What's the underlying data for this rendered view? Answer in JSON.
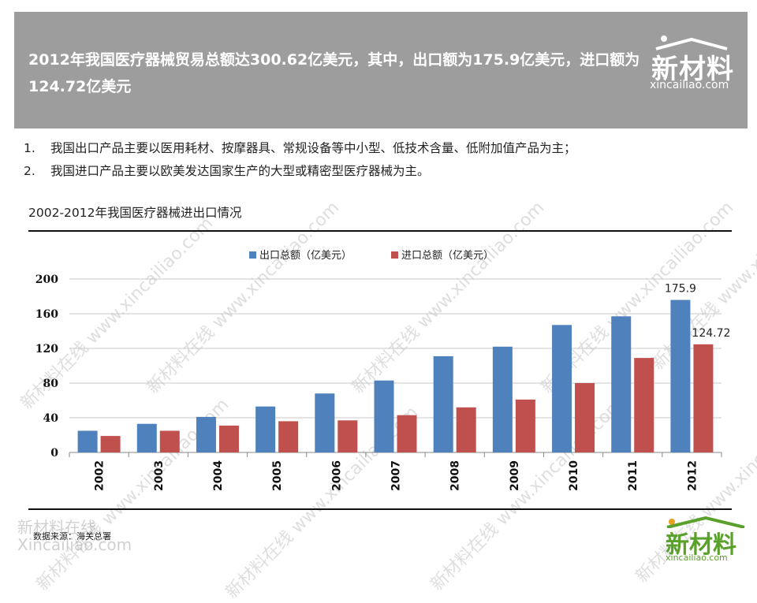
{
  "header": {
    "title": "2012年我国医疗器械贸易总额达300.62亿美元，其中，出口额为175.9亿美元，进口额为124.72亿美元"
  },
  "logo": {
    "brand": "新材料",
    "domain": "xincailiao.com"
  },
  "bullets": [
    {
      "num": "1.",
      "text": "我国出口产品主要以医用耗材、按摩器具、常规设备等中小型、低技术含量、低附加值产品为主；"
    },
    {
      "num": "2.",
      "text": "我国进口产品主要以欧美发达国家生产的大型或精密型医疗器械为主。"
    }
  ],
  "source": "数据来源：海关总署",
  "watermark": {
    "line1": "新材料在线",
    "line2": "Xincailiao.com",
    "diag": "新材料在线 www.xincailiao.com"
  },
  "colors": {
    "export": "#4f81bd",
    "import": "#c0504d",
    "header_bg": "#9d9d9d",
    "logo_green": "#5aa12b"
  },
  "chart_data": {
    "type": "bar",
    "title": "2002-2012年我国医疗器械进出口情况",
    "categories": [
      "2002",
      "2003",
      "2004",
      "2005",
      "2006",
      "2007",
      "2008",
      "2009",
      "2010",
      "2011",
      "2012"
    ],
    "series": [
      {
        "name": "出口总额（亿美元）",
        "values": [
          25,
          33,
          41,
          53,
          68,
          83,
          111,
          122,
          147,
          157,
          175.9
        ]
      },
      {
        "name": "进口总额（亿美元）",
        "values": [
          19,
          25,
          31,
          36,
          37,
          43,
          52,
          61,
          80,
          109,
          124.72
        ]
      }
    ],
    "ylim": [
      0,
      200
    ],
    "yticks": [
      0,
      40,
      80,
      120,
      160,
      200
    ],
    "data_labels": [
      {
        "series": 0,
        "index": 10,
        "text": "175.9"
      },
      {
        "series": 1,
        "index": 10,
        "text": "124.72"
      }
    ],
    "legend": "top-center",
    "grid": true
  }
}
